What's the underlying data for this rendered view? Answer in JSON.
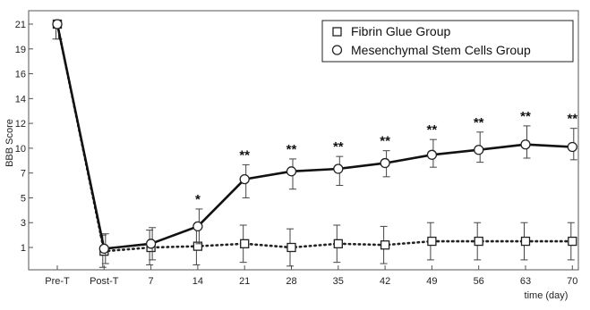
{
  "chart_data": {
    "type": "line",
    "title": "",
    "xlabel": "time (day)",
    "ylabel": "BBB Score",
    "categories": [
      "Pre-T",
      "Post-T",
      "7",
      "14",
      "21",
      "28",
      "35",
      "42",
      "49",
      "56",
      "63",
      "70"
    ],
    "y_ticks": [
      "1",
      "3",
      "5",
      "7",
      "10",
      "12",
      "14",
      "16",
      "19",
      "21"
    ],
    "legend_position": "top-right",
    "series": [
      {
        "name": "Fibrin Glue Group",
        "marker": "square",
        "line_style": "dotted",
        "values": [
          21,
          0.7,
          1.0,
          1.1,
          1.3,
          1.0,
          1.3,
          1.2,
          1.5,
          1.5,
          1.5,
          1.5
        ],
        "error": [
          1.2,
          1.3,
          1.4,
          1.5,
          1.5,
          1.5,
          1.5,
          1.5,
          1.5,
          1.5,
          1.5,
          1.5
        ]
      },
      {
        "name": "Mesenchymal Stem Cells Group",
        "marker": "circle",
        "line_style": "solid",
        "values": [
          21,
          0.9,
          1.3,
          2.7,
          6.5,
          7.2,
          7.5,
          8.2,
          9.2,
          9.8,
          10.3,
          10.1
        ],
        "error": [
          1.2,
          1.2,
          1.3,
          1.4,
          1.5,
          1.5,
          1.5,
          1.5,
          1.5,
          1.5,
          1.5,
          1.5
        ]
      }
    ],
    "annotations": [
      "",
      "",
      "",
      "*",
      "**",
      "**",
      "**",
      "**",
      "**",
      "**",
      "**",
      "**"
    ]
  }
}
